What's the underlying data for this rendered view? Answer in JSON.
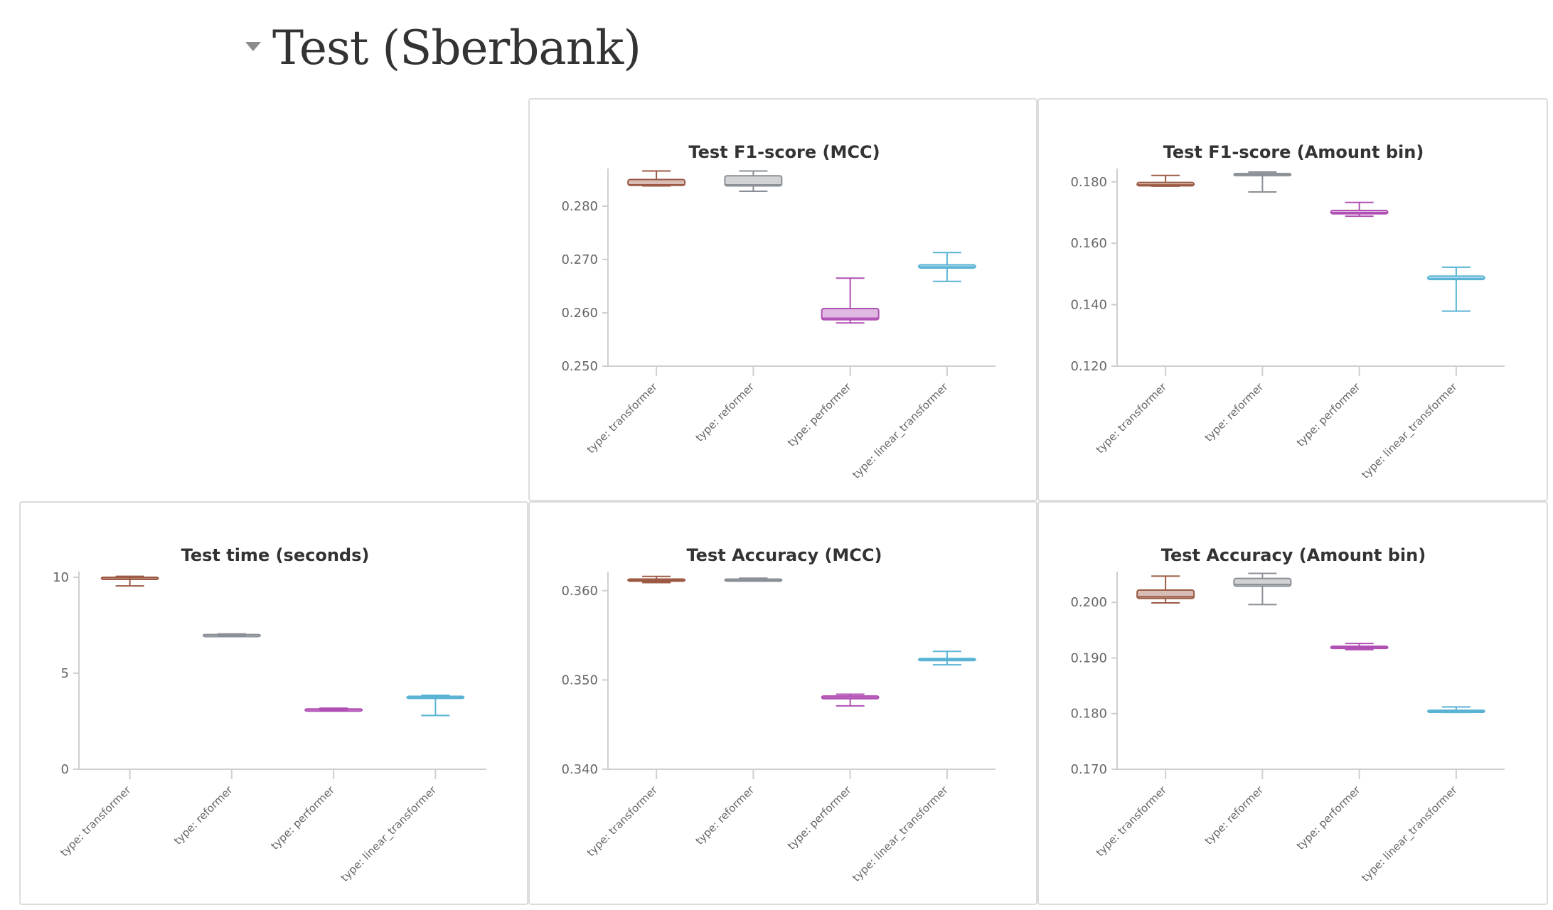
{
  "section": {
    "title": "Test (Sberbank)",
    "toggle_icon": "triangle-down-icon"
  },
  "charts": [
    {
      "id": "f1-mcc",
      "type": "box",
      "title": "Test F1-score (MCC)",
      "ylim": [
        0.25,
        0.286
      ],
      "yticks": [
        0.25,
        0.26,
        0.27,
        0.28
      ],
      "ytick_labels": [
        "0.250",
        "0.260",
        "0.270",
        "0.280"
      ],
      "categories": [
        "type: transformer",
        "type: reformer",
        "type: performer",
        "type: linear_transformer"
      ],
      "colors": [
        "#9c5a45",
        "#8b9097",
        "#b04fb4",
        "#5ab3d4"
      ],
      "boxes": [
        {
          "min": 0.2838,
          "q1": 0.2839,
          "median": 0.284,
          "q3": 0.285,
          "max": 0.2866
        },
        {
          "min": 0.2828,
          "q1": 0.2838,
          "median": 0.284,
          "q3": 0.2857,
          "max": 0.2866
        },
        {
          "min": 0.2581,
          "q1": 0.2587,
          "median": 0.259,
          "q3": 0.2608,
          "max": 0.2665
        },
        {
          "min": 0.2659,
          "q1": 0.2684,
          "median": 0.2686,
          "q3": 0.269,
          "max": 0.2713
        }
      ]
    },
    {
      "id": "f1-amount",
      "type": "box",
      "title": "Test F1-score (Amount bin)",
      "ylim": [
        0.12,
        0.1825
      ],
      "yticks": [
        0.12,
        0.14,
        0.16,
        0.18
      ],
      "ytick_labels": [
        "0.120",
        "0.140",
        "0.160",
        "0.180"
      ],
      "categories": [
        "type: transformer",
        "type: reformer",
        "type: performer",
        "type: linear_transformer"
      ],
      "colors": [
        "#9c5a45",
        "#8b9097",
        "#b04fb4",
        "#5ab3d4"
      ],
      "boxes": [
        {
          "min": 0.1786,
          "q1": 0.1787,
          "median": 0.179,
          "q3": 0.1798,
          "max": 0.1821
        },
        {
          "min": 0.1767,
          "q1": 0.1823,
          "median": 0.1825,
          "q3": 0.1827,
          "max": 0.1832
        },
        {
          "min": 0.1688,
          "q1": 0.1696,
          "median": 0.17,
          "q3": 0.1707,
          "max": 0.1733
        },
        {
          "min": 0.1379,
          "q1": 0.1482,
          "median": 0.1485,
          "q3": 0.1493,
          "max": 0.1522
        }
      ]
    },
    {
      "id": "time",
      "type": "box",
      "title": "Test time (seconds)",
      "ylim": [
        0,
        10
      ],
      "yticks": [
        0,
        5,
        10
      ],
      "ytick_labels": [
        "0",
        "5",
        "10"
      ],
      "categories": [
        "type: transformer",
        "type: reformer",
        "type: performer",
        "type: linear_transformer"
      ],
      "colors": [
        "#9c5a45",
        "#8b9097",
        "#b04fb4",
        "#5ab3d4"
      ],
      "boxes": [
        {
          "min": 9.55,
          "q1": 9.95,
          "median": 9.98,
          "q3": 10.0,
          "max": 10.05
        },
        {
          "min": 6.95,
          "q1": 6.97,
          "median": 7.0,
          "q3": 7.02,
          "max": 7.05
        },
        {
          "min": 3.08,
          "q1": 3.1,
          "median": 3.12,
          "q3": 3.14,
          "max": 3.18
        },
        {
          "min": 2.8,
          "q1": 3.72,
          "median": 3.75,
          "q3": 3.8,
          "max": 3.85
        }
      ]
    },
    {
      "id": "acc-mcc",
      "type": "box",
      "title": "Test Accuracy (MCC)",
      "ylim": [
        0.34,
        0.3615
      ],
      "yticks": [
        0.34,
        0.35,
        0.36
      ],
      "ytick_labels": [
        "0.340",
        "0.350",
        "0.360"
      ],
      "categories": [
        "type: transformer",
        "type: reformer",
        "type: performer",
        "type: linear_transformer"
      ],
      "colors": [
        "#9c5a45",
        "#8b9097",
        "#b04fb4",
        "#5ab3d4"
      ],
      "boxes": [
        {
          "min": 0.3609,
          "q1": 0.3611,
          "median": 0.3612,
          "q3": 0.3613,
          "max": 0.3616
        },
        {
          "min": 0.3611,
          "q1": 0.3611,
          "median": 0.3612,
          "q3": 0.3613,
          "max": 0.3614
        },
        {
          "min": 0.3471,
          "q1": 0.3479,
          "median": 0.348,
          "q3": 0.3482,
          "max": 0.3484
        },
        {
          "min": 0.3517,
          "q1": 0.3522,
          "median": 0.3523,
          "q3": 0.3524,
          "max": 0.3532
        }
      ]
    },
    {
      "id": "acc-amount",
      "type": "box",
      "title": "Test Accuracy (Amount bin)",
      "ylim": [
        0.17,
        0.2045
      ],
      "yticks": [
        0.17,
        0.18,
        0.19,
        0.2
      ],
      "ytick_labels": [
        "0.170",
        "0.180",
        "0.190",
        "0.200"
      ],
      "categories": [
        "type: transformer",
        "type: reformer",
        "type: performer",
        "type: linear_transformer"
      ],
      "colors": [
        "#9c5a45",
        "#8b9097",
        "#b04fb4",
        "#5ab3d4"
      ],
      "boxes": [
        {
          "min": 0.1999,
          "q1": 0.2007,
          "median": 0.201,
          "q3": 0.2022,
          "max": 0.2047
        },
        {
          "min": 0.1996,
          "q1": 0.2029,
          "median": 0.2032,
          "q3": 0.2043,
          "max": 0.2052
        },
        {
          "min": 0.1915,
          "q1": 0.1917,
          "median": 0.1919,
          "q3": 0.1921,
          "max": 0.1926
        },
        {
          "min": 0.1802,
          "q1": 0.1803,
          "median": 0.1804,
          "q3": 0.1806,
          "max": 0.1812
        }
      ]
    }
  ]
}
